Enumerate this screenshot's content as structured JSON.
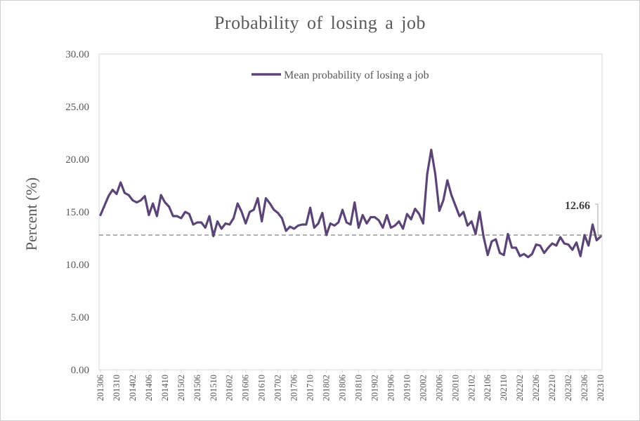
{
  "chart_data": {
    "type": "line",
    "title": "Probability  of losing  a job",
    "ylabel": "Percent (%)",
    "xlabel": "",
    "ylim": [
      0,
      30
    ],
    "y_ticks": [
      "0.00",
      "5.00",
      "10.00",
      "15.00",
      "20.00",
      "25.00",
      "30.00"
    ],
    "x_tick_labels": [
      "201306",
      "201310",
      "201402",
      "201406",
      "201410",
      "201502",
      "201506",
      "201510",
      "201602",
      "201606",
      "201610",
      "201702",
      "201706",
      "201710",
      "201802",
      "201806",
      "201810",
      "201902",
      "201906",
      "201910",
      "202002",
      "202006",
      "202010",
      "202102",
      "202106",
      "202110",
      "202202",
      "202206",
      "202210",
      "202302",
      "202306",
      "202310"
    ],
    "grid": false,
    "legend_position": "top-center",
    "series": [
      {
        "name": "Mean probability of losing a job",
        "color": "#5b4577",
        "x": [
          "201306",
          "201307",
          "201308",
          "201309",
          "201310",
          "201311",
          "201312",
          "201401",
          "201402",
          "201403",
          "201404",
          "201405",
          "201406",
          "201407",
          "201408",
          "201409",
          "201410",
          "201411",
          "201412",
          "201501",
          "201502",
          "201503",
          "201504",
          "201505",
          "201506",
          "201507",
          "201508",
          "201509",
          "201510",
          "201511",
          "201512",
          "201601",
          "201602",
          "201603",
          "201604",
          "201605",
          "201606",
          "201607",
          "201608",
          "201609",
          "201610",
          "201611",
          "201612",
          "201701",
          "201702",
          "201703",
          "201704",
          "201705",
          "201706",
          "201707",
          "201708",
          "201709",
          "201710",
          "201711",
          "201712",
          "201801",
          "201802",
          "201803",
          "201804",
          "201805",
          "201806",
          "201807",
          "201808",
          "201809",
          "201810",
          "201811",
          "201812",
          "201901",
          "201902",
          "201903",
          "201904",
          "201905",
          "201906",
          "201907",
          "201908",
          "201909",
          "201910",
          "201911",
          "201912",
          "202001",
          "202002",
          "202003",
          "202004",
          "202005",
          "202006",
          "202007",
          "202008",
          "202009",
          "202010",
          "202011",
          "202012",
          "202101",
          "202102",
          "202103",
          "202104",
          "202105",
          "202106",
          "202107",
          "202108",
          "202109",
          "202110",
          "202111",
          "202112",
          "202201",
          "202202",
          "202203",
          "202204",
          "202205",
          "202206",
          "202207",
          "202208",
          "202209",
          "202210",
          "202211",
          "202212",
          "202301",
          "202302",
          "202303",
          "202304",
          "202305",
          "202306",
          "202307",
          "202308",
          "202309",
          "202310"
        ],
        "values": [
          14.7,
          15.6,
          16.5,
          17.1,
          16.7,
          17.8,
          16.8,
          16.6,
          16.1,
          15.9,
          16.1,
          16.5,
          14.7,
          15.8,
          14.6,
          16.6,
          15.9,
          15.5,
          14.6,
          14.6,
          14.4,
          15.0,
          14.8,
          13.8,
          14.0,
          14.0,
          13.5,
          14.6,
          12.7,
          14.1,
          13.4,
          13.9,
          13.8,
          14.4,
          15.8,
          15.0,
          13.9,
          15.0,
          15.2,
          16.3,
          14.1,
          16.3,
          15.8,
          15.2,
          14.9,
          14.4,
          13.2,
          13.6,
          13.4,
          13.7,
          13.8,
          13.8,
          15.4,
          13.5,
          13.9,
          14.9,
          12.8,
          13.9,
          13.7,
          14.0,
          15.2,
          14.0,
          13.8,
          15.9,
          13.5,
          14.7,
          13.9,
          14.5,
          14.5,
          14.2,
          13.5,
          14.7,
          13.5,
          13.7,
          14.1,
          13.4,
          14.8,
          14.3,
          15.3,
          14.8,
          13.9,
          18.6,
          20.9,
          18.6,
          15.1,
          16.1,
          18.0,
          16.6,
          15.6,
          14.6,
          15.0,
          13.7,
          14.1,
          12.9,
          15.0,
          12.6,
          10.9,
          12.2,
          12.4,
          11.1,
          10.9,
          12.9,
          11.6,
          11.6,
          10.8,
          11.0,
          10.7,
          11.0,
          11.9,
          11.8,
          11.1,
          11.6,
          12.0,
          11.8,
          12.6,
          12.0,
          11.9,
          11.4,
          12.1,
          10.8,
          12.8,
          11.8,
          13.8,
          12.3,
          12.66
        ]
      }
    ],
    "reference_line": {
      "value": 12.8,
      "style": "dashed",
      "color": "#7f7f7f"
    },
    "annotation": {
      "label": "12.66",
      "value": 12.66,
      "x": "202310"
    }
  }
}
